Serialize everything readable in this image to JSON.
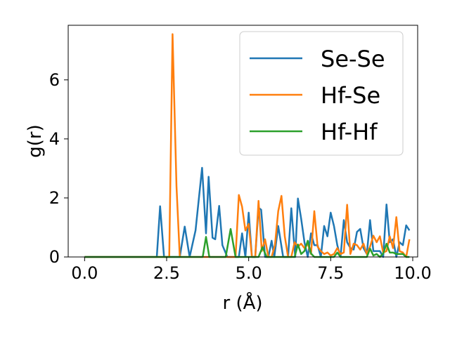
{
  "chart_data": {
    "type": "line",
    "xlabel": "r (Å)",
    "ylabel": "g(r)",
    "xlim": [
      -0.5,
      10.15
    ],
    "ylim": [
      0,
      7.85
    ],
    "xticks": [
      0.0,
      2.5,
      5.0,
      7.5,
      10.0
    ],
    "xtick_labels": [
      "0.0",
      "2.5",
      "5.0",
      "7.5",
      "10.0"
    ],
    "yticks": [
      0,
      2,
      4,
      6
    ],
    "ytick_labels": [
      "0",
      "2",
      "4",
      "6"
    ],
    "grid": false,
    "legend_position": "top-right",
    "series": [
      {
        "name": "Se-Se",
        "color": "#1f77b4",
        "x": [
          0.0,
          2.2,
          2.3,
          2.42,
          2.9,
          3.05,
          3.2,
          3.38,
          3.58,
          3.7,
          3.78,
          3.9,
          3.98,
          4.1,
          4.2,
          4.35,
          4.55,
          4.7,
          4.8,
          4.9,
          5.0,
          5.1,
          5.2,
          5.3,
          5.38,
          5.5,
          5.6,
          5.7,
          5.78,
          5.9,
          6.05,
          6.2,
          6.3,
          6.42,
          6.5,
          6.6,
          6.7,
          6.8,
          6.9,
          7.0,
          7.1,
          7.2,
          7.3,
          7.4,
          7.5,
          7.6,
          7.7,
          7.8,
          7.9,
          8.0,
          8.1,
          8.2,
          8.3,
          8.4,
          8.5,
          8.6,
          8.7,
          8.8,
          8.9,
          9.0,
          9.1,
          9.2,
          9.3,
          9.4,
          9.5,
          9.6,
          9.7,
          9.8,
          9.9
        ],
        "values": [
          0,
          0,
          1.72,
          0,
          0,
          1.03,
          0,
          0.9,
          3.02,
          0.8,
          2.72,
          0.65,
          0.6,
          1.73,
          0.4,
          0,
          0,
          0,
          0.8,
          0,
          1.5,
          0,
          0,
          1.67,
          1.6,
          0,
          0,
          0.55,
          0,
          1.05,
          0,
          0,
          1.65,
          0,
          1.98,
          1.3,
          0.5,
          0,
          0.8,
          0.4,
          0.4,
          0,
          1.05,
          0.7,
          1.5,
          1.05,
          0.4,
          0,
          1.25,
          0.5,
          0.3,
          0.25,
          0.85,
          0.95,
          0.3,
          0.1,
          1.25,
          0.2,
          0.2,
          0.2,
          0,
          1.78,
          0.5,
          0.6,
          0,
          0.5,
          0.4,
          1.07,
          0.9
        ]
      },
      {
        "name": "Hf-Se",
        "color": "#ff7f0e",
        "x": [
          0.0,
          2.58,
          2.68,
          2.8,
          2.9,
          4.6,
          4.7,
          4.8,
          4.9,
          5.0,
          5.1,
          5.2,
          5.3,
          5.4,
          5.5,
          5.6,
          5.7,
          5.8,
          5.9,
          6.0,
          6.1,
          6.2,
          6.3,
          6.4,
          6.5,
          6.6,
          6.7,
          6.8,
          6.9,
          7.0,
          7.1,
          7.2,
          7.3,
          7.4,
          7.5,
          7.6,
          7.7,
          7.8,
          7.9,
          8.0,
          8.1,
          8.2,
          8.3,
          8.4,
          8.5,
          8.6,
          8.7,
          8.8,
          8.9,
          9.0,
          9.1,
          9.2,
          9.3,
          9.4,
          9.5,
          9.6,
          9.7,
          9.8,
          9.9
        ],
        "values": [
          0,
          0,
          7.55,
          2.4,
          0,
          0,
          2.1,
          1.7,
          0.9,
          1.12,
          0,
          0,
          1.9,
          0.2,
          0.6,
          0,
          0,
          0.4,
          1.55,
          2.07,
          0.7,
          0,
          0,
          0.5,
          0.35,
          0.45,
          0.3,
          0.45,
          0.1,
          1.55,
          0.35,
          0.2,
          0.1,
          0.15,
          0.05,
          0.1,
          0.3,
          0.1,
          0.15,
          1.77,
          0.1,
          0.45,
          0.4,
          0.25,
          0.45,
          0.1,
          0.35,
          0.72,
          0.5,
          0.7,
          0.15,
          0.2,
          0.7,
          0.3,
          1.35,
          0.2,
          0.15,
          0,
          0.6
        ]
      },
      {
        "name": "Hf-Hf",
        "color": "#2ca02c",
        "x": [
          0.0,
          3.6,
          3.7,
          3.8,
          4.3,
          4.45,
          4.6,
          5.3,
          5.42,
          5.55,
          6.4,
          6.5,
          6.6,
          6.7,
          6.8,
          6.9,
          7.0,
          7.6,
          7.7,
          7.8,
          8.6,
          8.7,
          8.8,
          8.9,
          9.0,
          9.1,
          9.2,
          9.3,
          9.4,
          9.5,
          9.6,
          9.7,
          9.8,
          9.9
        ],
        "values": [
          0,
          0,
          0.68,
          0,
          0,
          0.95,
          0,
          0,
          0.33,
          0,
          0,
          0.42,
          0.1,
          0.2,
          0.55,
          0.12,
          0,
          0,
          0.15,
          0,
          0,
          0.28,
          0.05,
          0.1,
          0,
          0.12,
          0.45,
          0.15,
          0.15,
          0.1,
          0.1,
          0.1,
          0,
          0
        ]
      }
    ]
  }
}
